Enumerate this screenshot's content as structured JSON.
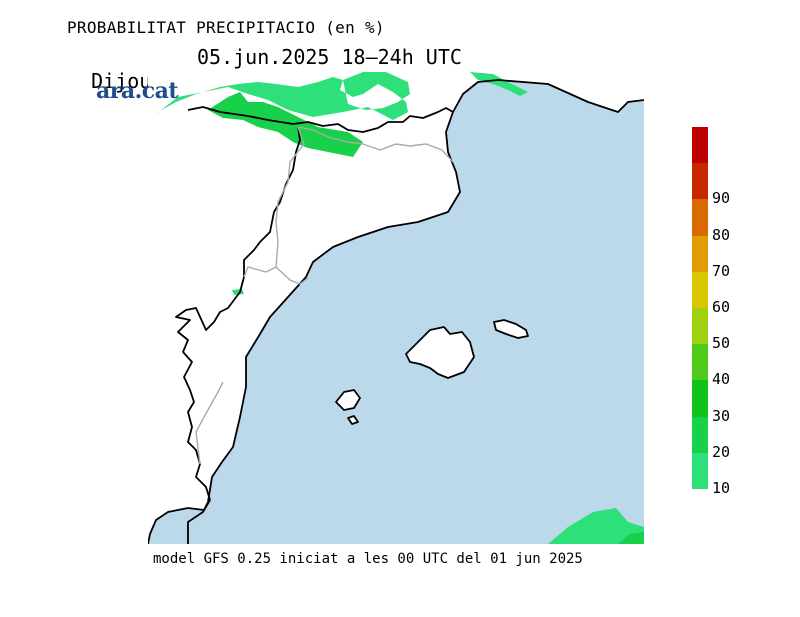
{
  "title": "PROBABILITAT PRECIPITACIO (en %)",
  "subtitle_day": "Dijous",
  "subtitle_date": "05.jun.2025 18–24h UTC",
  "brand": "ara.cat",
  "footer": "model GFS 0.25 iniciat a les 00 UTC del 01 jun 2025",
  "colors": {
    "sea": "#bcd9ec",
    "land": "#ffffff",
    "coast": "#000000",
    "border": "#aaaaaa",
    "precip_10": "#2ee07a",
    "precip_20": "#19d04a"
  },
  "legend": {
    "labels": [
      "10",
      "20",
      "30",
      "40",
      "50",
      "60",
      "70",
      "80",
      "90"
    ],
    "colors": [
      "#2ee07a",
      "#19d04a",
      "#10c21a",
      "#4ecb19",
      "#a0d10f",
      "#d7c800",
      "#e19e00",
      "#d96a00",
      "#c82800",
      "#c00000"
    ]
  }
}
